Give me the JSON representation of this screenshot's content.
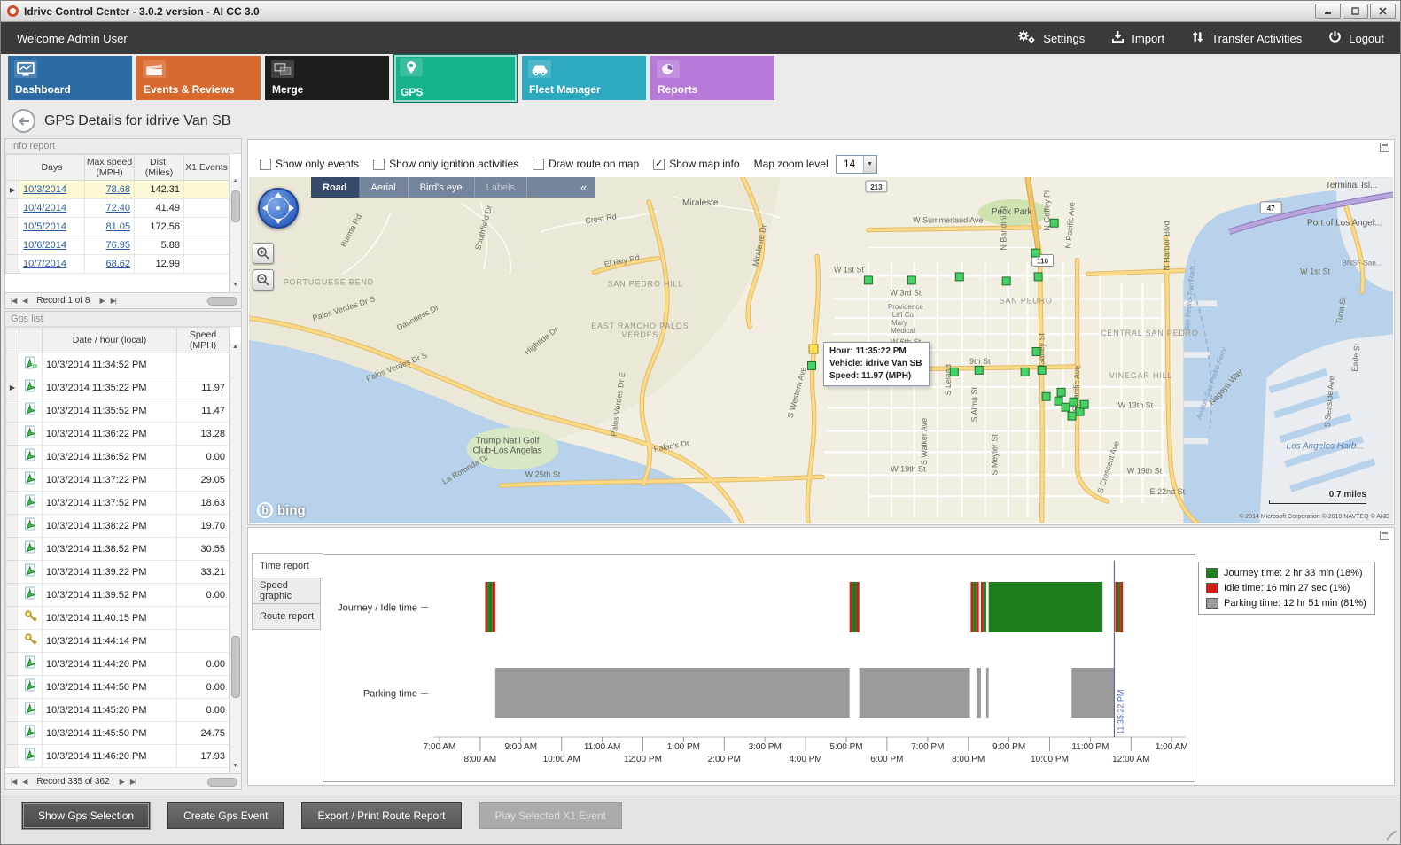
{
  "window": {
    "title": "Idrive Control Center - 3.0.2 version - AI CC 3.0"
  },
  "menubar": {
    "welcome": "Welcome Admin User",
    "actions": [
      {
        "label": "Settings"
      },
      {
        "label": "Import"
      },
      {
        "label": "Transfer Activities"
      },
      {
        "label": "Logout"
      }
    ]
  },
  "nav_tiles": [
    {
      "label": "Dashboard",
      "color": "#2d6ca2",
      "active": false
    },
    {
      "label": "Events & Reviews",
      "color": "#d8692e",
      "active": false
    },
    {
      "label": "Merge",
      "color": "#1d1d1d",
      "active": false
    },
    {
      "label": "GPS",
      "color": "#15b28b",
      "active": true
    },
    {
      "label": "Fleet Manager",
      "color": "#2da9bf",
      "active": false
    },
    {
      "label": "Reports",
      "color": "#b87ad9",
      "active": false
    }
  ],
  "page": {
    "title": "GPS Details for idrive Van SB"
  },
  "info_report": {
    "caption": "Info report",
    "columns": [
      "Days",
      "Max speed (MPH)",
      "Dist. (Miles)",
      "X1 Events"
    ],
    "rows": [
      {
        "day": "10/3/2014",
        "max_speed": "78.68",
        "dist": "142.31",
        "x1": "",
        "selected": true
      },
      {
        "day": "10/4/2014",
        "max_speed": "72.40",
        "dist": "41.49",
        "x1": "",
        "selected": false
      },
      {
        "day": "10/5/2014",
        "max_speed": "81.05",
        "dist": "172.56",
        "x1": "",
        "selected": false
      },
      {
        "day": "10/6/2014",
        "max_speed": "76.95",
        "dist": "5.88",
        "x1": "",
        "selected": false
      },
      {
        "day": "10/7/2014",
        "max_speed": "68.62",
        "dist": "12.99",
        "x1": "",
        "selected": false
      }
    ],
    "pager": "Record 1 of 8"
  },
  "gps_list": {
    "caption": "Gps list",
    "columns": [
      "Date / hour (local)",
      "Speed (MPH)"
    ],
    "rows": [
      {
        "icon": "gps-point-add",
        "datetime": "10/3/2014 11:34:52 PM",
        "speed": "",
        "selected": false
      },
      {
        "icon": "gps-point",
        "datetime": "10/3/2014 11:35:22 PM",
        "speed": "11.97",
        "selected": true
      },
      {
        "icon": "gps-point",
        "datetime": "10/3/2014 11:35:52 PM",
        "speed": "11.47",
        "selected": false
      },
      {
        "icon": "gps-point",
        "datetime": "10/3/2014 11:36:22 PM",
        "speed": "13.28",
        "selected": false
      },
      {
        "icon": "gps-point",
        "datetime": "10/3/2014 11:36:52 PM",
        "speed": "0.00",
        "selected": false
      },
      {
        "icon": "gps-point",
        "datetime": "10/3/2014 11:37:22 PM",
        "speed": "29.05",
        "selected": false
      },
      {
        "icon": "gps-point",
        "datetime": "10/3/2014 11:37:52 PM",
        "speed": "18.63",
        "selected": false
      },
      {
        "icon": "gps-point",
        "datetime": "10/3/2014 11:38:22 PM",
        "speed": "19.70",
        "selected": false
      },
      {
        "icon": "gps-point",
        "datetime": "10/3/2014 11:38:52 PM",
        "speed": "30.55",
        "selected": false
      },
      {
        "icon": "gps-point",
        "datetime": "10/3/2014 11:39:22 PM",
        "speed": "33.21",
        "selected": false
      },
      {
        "icon": "gps-point",
        "datetime": "10/3/2014 11:39:52 PM",
        "speed": "0.00",
        "selected": false
      },
      {
        "icon": "ignition-key",
        "datetime": "10/3/2014 11:40:15 PM",
        "speed": "",
        "selected": false
      },
      {
        "icon": "ignition-key",
        "datetime": "10/3/2014 11:44:14 PM",
        "speed": "",
        "selected": false
      },
      {
        "icon": "gps-point",
        "datetime": "10/3/2014 11:44:20 PM",
        "speed": "0.00",
        "selected": false
      },
      {
        "icon": "gps-point",
        "datetime": "10/3/2014 11:44:50 PM",
        "speed": "0.00",
        "selected": false
      },
      {
        "icon": "gps-point",
        "datetime": "10/3/2014 11:45:20 PM",
        "speed": "0.00",
        "selected": false
      },
      {
        "icon": "gps-point",
        "datetime": "10/3/2014 11:45:50 PM",
        "speed": "24.75",
        "selected": false
      },
      {
        "icon": "gps-point",
        "datetime": "10/3/2014 11:46:20 PM",
        "speed": "17.93",
        "selected": false
      }
    ],
    "pager": "Record 335 of 362"
  },
  "map": {
    "toolbar": {
      "checkboxes": [
        {
          "label": "Show only events",
          "checked": false
        },
        {
          "label": "Show only ignition activities",
          "checked": false
        },
        {
          "label": "Draw route on map",
          "checked": false
        },
        {
          "label": "Show map info",
          "checked": true
        }
      ],
      "zoom_label": "Map zoom level",
      "zoom_value": "14"
    },
    "view_tabs": [
      {
        "label": "Road",
        "active": true,
        "disabled": false
      },
      {
        "label": "Aerial",
        "active": false,
        "disabled": false
      },
      {
        "label": "Bird's eye",
        "active": false,
        "disabled": false
      },
      {
        "label": "Labels",
        "active": false,
        "disabled": true
      }
    ],
    "collapse_glyph": "«",
    "tooltip": {
      "line1": "Hour: 11:35:22 PM",
      "line2": "Vehicle: idrive Van SB",
      "line3": "Speed: 11.97 (MPH)"
    },
    "logo": "bing",
    "scale_label": "0.7 miles",
    "copyright": "© 2014 Microsoft Corporation   © 2010 NAVTEQ   © AND",
    "shields": [
      [
        "213",
        697,
        4
      ],
      [
        "110",
        885,
        88
      ],
      [
        "47",
        1143,
        28
      ]
    ],
    "marker_colors": {
      "green": "#47d162",
      "yellow": "#ffdf52"
    },
    "markers": [
      [
        910,
        52
      ],
      [
        889,
        86
      ],
      [
        700,
        117
      ],
      [
        749,
        117
      ],
      [
        803,
        113
      ],
      [
        856,
        118
      ],
      [
        892,
        113
      ],
      [
        636,
        214
      ],
      [
        763,
        219
      ],
      [
        797,
        221
      ],
      [
        825,
        219
      ],
      [
        877,
        221
      ],
      [
        896,
        219
      ],
      [
        890,
        198
      ],
      [
        901,
        249
      ],
      [
        915,
        254
      ],
      [
        923,
        261
      ],
      [
        932,
        255
      ],
      [
        939,
        266
      ],
      [
        930,
        271
      ],
      [
        944,
        258
      ],
      [
        918,
        244
      ]
    ],
    "selected_marker": [
      638,
      195
    ],
    "labels": [
      [
        "Miraleste",
        510,
        32,
        0,
        "place"
      ],
      [
        "Peck Park",
        862,
        42,
        0,
        "place"
      ],
      [
        "W Summerland Ave",
        790,
        52,
        0,
        "road"
      ],
      [
        "Crest Rd",
        398,
        50,
        -8,
        "road"
      ],
      [
        "Burma Rd",
        118,
        62,
        -62,
        "road"
      ],
      [
        "Southfield Dr",
        268,
        58,
        -75,
        "road"
      ],
      [
        "Miraleste Dr",
        580,
        78,
        -78,
        "road"
      ],
      [
        "W 1st St",
        678,
        108,
        0,
        "road"
      ],
      [
        "W 1st St",
        1205,
        110,
        0,
        "road"
      ],
      [
        "W 3rd St",
        742,
        134,
        0,
        "road"
      ],
      [
        "Providence",
        742,
        150,
        0,
        "psmall"
      ],
      [
        "Lit'l Co",
        739,
        159,
        0,
        "psmall"
      ],
      [
        "Mary",
        735,
        168,
        0,
        "psmall"
      ],
      [
        "Medical",
        739,
        177,
        0,
        "psmall"
      ],
      [
        "W 6th St",
        742,
        190,
        0,
        "road"
      ],
      [
        "SAN PEDRO",
        878,
        143,
        0,
        "area"
      ],
      [
        "CENTRAL SAN PEDRO",
        1018,
        180,
        0,
        "area"
      ],
      [
        "9th St",
        826,
        212,
        0,
        "road"
      ],
      [
        "VINEGAR HILL",
        1008,
        228,
        0,
        "area"
      ],
      [
        "W 13th St",
        1002,
        262,
        0,
        "road"
      ],
      [
        "W 19th St",
        745,
        334,
        0,
        "road"
      ],
      [
        "W 19th St",
        1012,
        336,
        0,
        "road"
      ],
      [
        "E 22nd St",
        1038,
        360,
        0,
        "road"
      ],
      [
        "W 25th St",
        332,
        340,
        0,
        "road"
      ],
      [
        "S Western Ave",
        622,
        245,
        -75,
        "road"
      ],
      [
        "S Walker Ave",
        766,
        300,
        -90,
        "road"
      ],
      [
        "S Meyler St",
        846,
        315,
        -90,
        "road"
      ],
      [
        "S Leland",
        793,
        230,
        -90,
        "road"
      ],
      [
        "S Alma St",
        823,
        258,
        -90,
        "road"
      ],
      [
        "S Gaffey St",
        899,
        200,
        -90,
        "road"
      ],
      [
        "S Pacific Ave",
        938,
        240,
        -88,
        "road"
      ],
      [
        "S Crescent Ave",
        974,
        330,
        -72,
        "road"
      ],
      [
        "N Gaffey Pl",
        905,
        38,
        -90,
        "road"
      ],
      [
        "N Bandini St",
        856,
        58,
        -90,
        "road"
      ],
      [
        "N Pacific Ave",
        931,
        55,
        -85,
        "road"
      ],
      [
        "N Harbor Blvd",
        1040,
        78,
        -90,
        "road"
      ],
      [
        "PORTUGUESE BEND",
        90,
        122,
        0,
        "area"
      ],
      [
        "SAN PEDRO HILL",
        448,
        124,
        0,
        "area"
      ],
      [
        "EAST RANCHO PALOS",
        442,
        172,
        0,
        "area"
      ],
      [
        "VERDES",
        442,
        182,
        0,
        "area"
      ],
      [
        "El Rey Rd",
        422,
        98,
        -12,
        "road"
      ],
      [
        "Dauntless Dr",
        192,
        162,
        -28,
        "road"
      ],
      [
        "Hightide Dr",
        332,
        188,
        -38,
        "road"
      ],
      [
        "Palos Verdes Dr S",
        108,
        152,
        -18,
        "road"
      ],
      [
        "Palos Verdes Dr S",
        168,
        218,
        -22,
        "road"
      ],
      [
        "Palos Verdes Dr E",
        420,
        258,
        -82,
        "road"
      ],
      [
        "Trump Nat'l Golf",
        292,
        302,
        0,
        "place"
      ],
      [
        "Club-Los Angelas",
        292,
        313,
        0,
        "place"
      ],
      [
        "La Rotonda Dr",
        246,
        334,
        -30,
        "road"
      ],
      [
        "Palac's Dr",
        478,
        308,
        -10,
        "road"
      ],
      [
        "Nagoya Way",
        1106,
        240,
        -48,
        "road"
      ],
      [
        "S Seaside Ave",
        1224,
        255,
        -85,
        "road"
      ],
      [
        "Earle St",
        1254,
        205,
        -85,
        "road"
      ],
      [
        "Tuna St",
        1237,
        152,
        -80,
        "road"
      ],
      [
        "Terminal Isl...",
        1246,
        12,
        0,
        "place"
      ],
      [
        "Port of Los Angel...",
        1238,
        55,
        0,
        "place"
      ],
      [
        "BNSF-San...",
        1258,
        100,
        0,
        "psmall"
      ],
      [
        "Los Angeles Harb...",
        1216,
        308,
        0,
        "water"
      ],
      [
        "San Pedro-Two Harb...",
        1066,
        135,
        -85,
        "wsmall"
      ],
      [
        "Avalon-San Pedro Ferry",
        1090,
        235,
        -70,
        "wsmall"
      ]
    ]
  },
  "chart_tabs": [
    {
      "label": "Time report",
      "active": true
    },
    {
      "label": "Speed graphic",
      "active": false
    },
    {
      "label": "Route report",
      "active": false
    }
  ],
  "chart_data": {
    "type": "timeline-gantt",
    "title": "Time report",
    "axis": {
      "start_hour": 6.7,
      "end_hour": 25.4,
      "tick_hours": [
        7,
        8,
        9,
        10,
        11,
        12,
        13,
        14,
        15,
        16,
        17,
        18,
        19,
        20,
        21,
        22,
        23,
        24,
        25
      ],
      "tick_labels": [
        "7:00 AM",
        "8:00 AM",
        "9:00 AM",
        "10:00 AM",
        "11:00 AM",
        "12:00 PM",
        "1:00 PM",
        "2:00 PM",
        "3:00 PM",
        "4:00 PM",
        "5:00 PM",
        "6:00 PM",
        "7:00 PM",
        "8:00 PM",
        "9:00 PM",
        "10:00 PM",
        "11:00 PM",
        "12:00 AM",
        "1:00 AM"
      ]
    },
    "colors": {
      "journey": "#1e7d1c",
      "idle": "#d41c14",
      "parking": "#9b9b9b"
    },
    "rows": [
      {
        "label": "Journey / Idle time",
        "segments": [
          {
            "type": "idle",
            "start": 8.12,
            "end": 8.18
          },
          {
            "type": "journey",
            "start": 8.18,
            "end": 8.3
          },
          {
            "type": "idle",
            "start": 8.3,
            "end": 8.37
          },
          {
            "type": "idle",
            "start": 17.08,
            "end": 17.14
          },
          {
            "type": "journey",
            "start": 17.14,
            "end": 17.25
          },
          {
            "type": "idle",
            "start": 17.25,
            "end": 17.32
          },
          {
            "type": "idle",
            "start": 20.06,
            "end": 20.12
          },
          {
            "type": "journey",
            "start": 20.12,
            "end": 20.2
          },
          {
            "type": "idle",
            "start": 20.2,
            "end": 20.26
          },
          {
            "type": "idle",
            "start": 20.31,
            "end": 20.37
          },
          {
            "type": "journey",
            "start": 20.37,
            "end": 20.44
          },
          {
            "type": "journey",
            "start": 20.5,
            "end": 23.3
          },
          {
            "type": "idle",
            "start": 23.61,
            "end": 23.66
          },
          {
            "type": "journey",
            "start": 23.66,
            "end": 23.74
          },
          {
            "type": "idle",
            "start": 23.74,
            "end": 23.8
          }
        ]
      },
      {
        "label": "Parking time",
        "segments": [
          {
            "type": "parking",
            "start": 8.37,
            "end": 17.08
          },
          {
            "type": "parking",
            "start": 17.32,
            "end": 20.04
          },
          {
            "type": "parking",
            "start": 20.2,
            "end": 20.31
          },
          {
            "type": "parking",
            "start": 20.44,
            "end": 20.5
          },
          {
            "type": "parking",
            "start": 22.54,
            "end": 23.59
          }
        ]
      }
    ],
    "cursor": {
      "hour": 23.589,
      "label": "11:35:22 PM",
      "color": "#4a66d8"
    },
    "legend": [
      {
        "label": "Journey time: 2 hr 33 min (18%)",
        "color": "#1e7d1c"
      },
      {
        "label": "Idle time: 16 min 27 sec (1%)",
        "color": "#d41c14"
      },
      {
        "label": "Parking time: 12 hr 51 min (81%)",
        "color": "#9b9b9b"
      }
    ]
  },
  "footer_buttons": [
    {
      "label": "Show Gps Selection",
      "state": "focused"
    },
    {
      "label": "Create Gps Event",
      "state": "normal"
    },
    {
      "label": "Export / Print Route Report",
      "state": "normal"
    },
    {
      "label": "Play Selected X1 Event",
      "state": "disabled"
    }
  ]
}
